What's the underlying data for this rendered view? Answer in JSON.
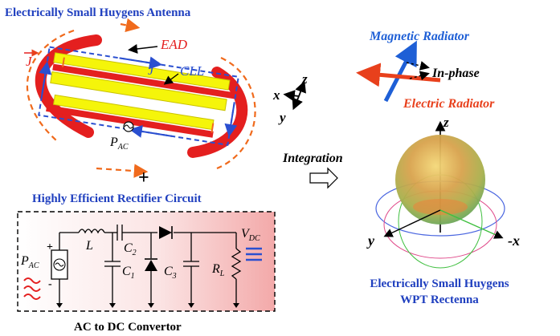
{
  "title_antenna": "Electrically Small Huygens Antenna",
  "label_j_outer": "J",
  "label_ead": "EAD",
  "label_j_inner": "J",
  "label_cll": "CLL",
  "label_pac_antenna": "P",
  "label_pac_antenna_sub": "AC",
  "plus_sign": "+",
  "title_rectifier": "Highly Efficient Rectifier Circuit",
  "circuit": {
    "pac": "P",
    "pac_sub": "AC",
    "plus": "+",
    "minus": "-",
    "inductor": "L",
    "c2": "C",
    "c2_sub": "2",
    "c1": "C",
    "c1_sub": "1",
    "c3": "C",
    "c3_sub": "3",
    "rl": "R",
    "rl_sub": "L",
    "vdc": "V",
    "vdc_sub": "DC"
  },
  "caption_converter": "AC to DC Convertor",
  "axes_small": {
    "x": "x",
    "y": "y",
    "z": "z"
  },
  "label_integration": "Integration",
  "label_magnetic": "Magnetic Radiator",
  "label_inphase": "In-phase",
  "label_electric": "Electric Radiator",
  "pattern_axes": {
    "z": "z",
    "y": "y",
    "negx": "-x"
  },
  "caption_rectenna_line1": "Electrically Small Huygens",
  "caption_rectenna_line2": "WPT Rectenna",
  "colors": {
    "title_blue": "#1f3fbf",
    "dipole_red": "#e41f1f",
    "strip_yellow": "#f5f50a",
    "current_orange": "#f06a1c",
    "magnetic_blue": "#1e5fd6"
  }
}
